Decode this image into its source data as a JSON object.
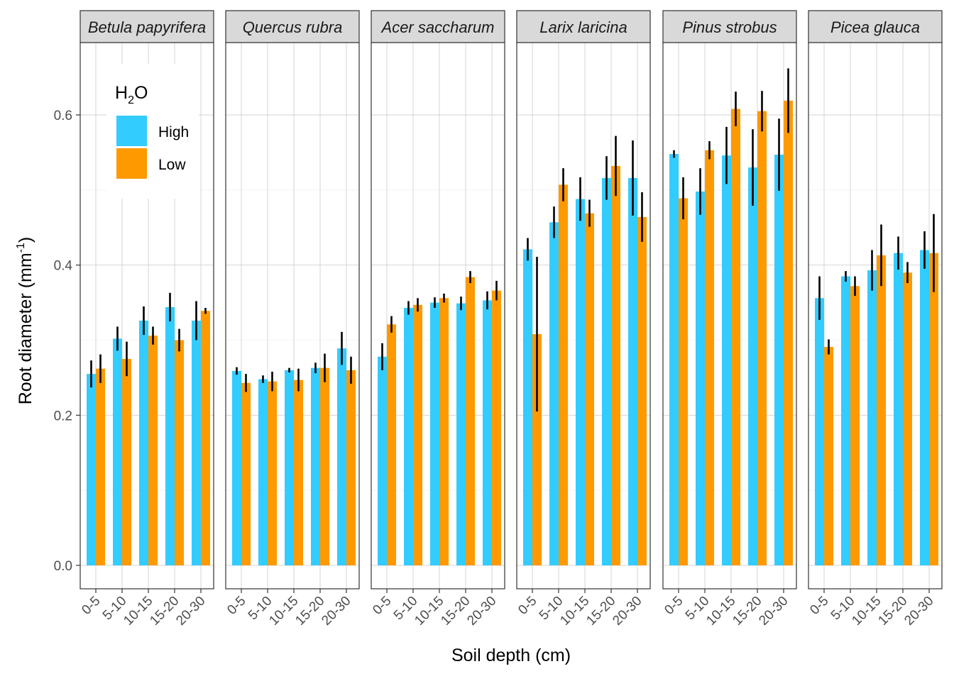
{
  "chart_data": {
    "type": "bar",
    "xlabel": "Soil depth (cm)",
    "ylabel": {
      "base": "Root diameter (mm",
      "sup": "-1",
      "end": ")"
    },
    "ylim": [
      -0.03,
      0.69
    ],
    "yticks": [
      0.0,
      0.2,
      0.4,
      0.6
    ],
    "ytick_labels": [
      "0.0",
      "0.2",
      "0.4",
      "0.6"
    ],
    "grid": true,
    "legend": {
      "title": {
        "base": "H",
        "sub": "2",
        "end": "O"
      },
      "placement": "top-left inside first panel",
      "entries": [
        {
          "label": "High",
          "color": "#33CCFF"
        },
        {
          "label": "Low",
          "color": "#FF9900"
        }
      ]
    },
    "categories": [
      "0-5",
      "5-10",
      "10-15",
      "15-20",
      "20-30"
    ],
    "panels": [
      {
        "species": "Betula papyrifera",
        "high": {
          "values": [
            0.255,
            0.302,
            0.326,
            0.344,
            0.326
          ],
          "errors": [
            0.018,
            0.016,
            0.019,
            0.019,
            0.026
          ]
        },
        "low": {
          "values": [
            0.262,
            0.275,
            0.306,
            0.3,
            0.339
          ],
          "errors": [
            0.019,
            0.023,
            0.012,
            0.015,
            0.004
          ]
        }
      },
      {
        "species": "Quercus rubra",
        "high": {
          "values": [
            0.259,
            0.248,
            0.26,
            0.263,
            0.289
          ],
          "errors": [
            0.005,
            0.005,
            0.003,
            0.007,
            0.022
          ]
        },
        "low": {
          "values": [
            0.243,
            0.245,
            0.247,
            0.263,
            0.26
          ],
          "errors": [
            0.012,
            0.013,
            0.015,
            0.019,
            0.018
          ]
        }
      },
      {
        "species": "Acer saccharum",
        "high": {
          "values": [
            0.278,
            0.343,
            0.35,
            0.349,
            0.353
          ],
          "errors": [
            0.018,
            0.009,
            0.007,
            0.009,
            0.012
          ]
        },
        "low": {
          "values": [
            0.321,
            0.347,
            0.356,
            0.384,
            0.366
          ],
          "errors": [
            0.011,
            0.009,
            0.006,
            0.008,
            0.013
          ]
        }
      },
      {
        "species": "Larix laricina",
        "high": {
          "values": [
            0.421,
            0.457,
            0.488,
            0.516,
            0.516
          ],
          "errors": [
            0.015,
            0.021,
            0.029,
            0.029,
            0.05
          ]
        },
        "low": {
          "values": [
            0.308,
            0.507,
            0.469,
            0.532,
            0.464
          ],
          "errors": [
            0.103,
            0.022,
            0.018,
            0.04,
            0.033
          ]
        }
      },
      {
        "species": "Pinus strobus",
        "high": {
          "values": [
            0.548,
            0.498,
            0.546,
            0.53,
            0.547
          ],
          "errors": [
            0.005,
            0.031,
            0.038,
            0.051,
            0.048
          ]
        },
        "low": {
          "values": [
            0.489,
            0.553,
            0.608,
            0.605,
            0.619
          ],
          "errors": [
            0.028,
            0.012,
            0.023,
            0.027,
            0.043
          ]
        }
      },
      {
        "species": "Picea glauca",
        "high": {
          "values": [
            0.356,
            0.385,
            0.393,
            0.416,
            0.42
          ],
          "errors": [
            0.029,
            0.007,
            0.027,
            0.022,
            0.025
          ]
        },
        "low": {
          "values": [
            0.291,
            0.372,
            0.413,
            0.39,
            0.416
          ],
          "errors": [
            0.01,
            0.013,
            0.041,
            0.014,
            0.052
          ]
        }
      }
    ]
  }
}
